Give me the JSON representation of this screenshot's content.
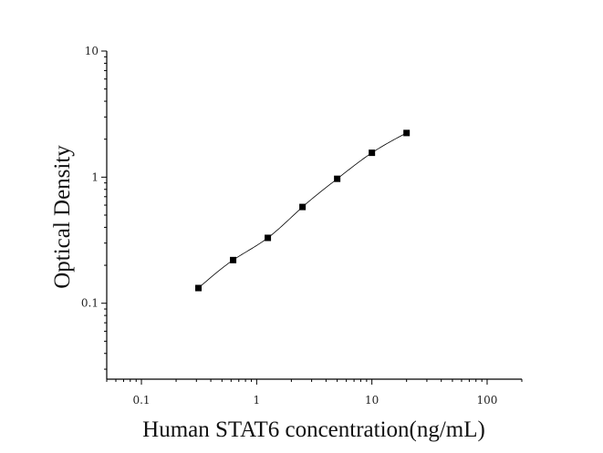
{
  "chart_data": {
    "type": "scatter",
    "title": "",
    "xlabel": "Human STAT6 concentration(ng/mL)",
    "ylabel": "Optical Density",
    "x_scale": "log",
    "y_scale": "log",
    "xlim": [
      0.05,
      200
    ],
    "ylim": [
      0.025,
      10
    ],
    "x_ticks": [
      {
        "value": 0.1,
        "label": "0.1"
      },
      {
        "value": 1,
        "label": "1"
      },
      {
        "value": 10,
        "label": "10"
      },
      {
        "value": 100,
        "label": "100"
      }
    ],
    "y_ticks": [
      {
        "value": 0.1,
        "label": "0.1"
      },
      {
        "value": 1,
        "label": "1"
      },
      {
        "value": 10,
        "label": "10"
      }
    ],
    "grid": false,
    "legend": "none",
    "points": {
      "x": [
        0.3125,
        0.625,
        1.25,
        2.5,
        5,
        10,
        20
      ],
      "y": [
        0.132,
        0.22,
        0.33,
        0.58,
        0.97,
        1.56,
        2.24
      ]
    },
    "fit_curve": true,
    "colors": {
      "points": "#000000",
      "curve": "#000000",
      "axes": "#000000"
    }
  }
}
